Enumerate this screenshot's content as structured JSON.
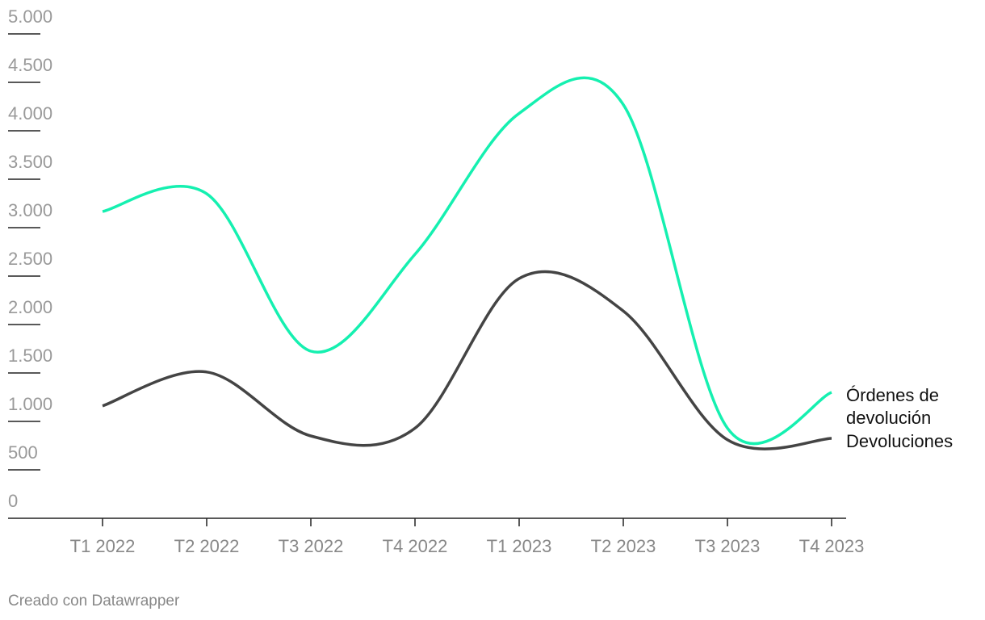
{
  "chart_data": {
    "type": "line",
    "categories": [
      "T1 2022",
      "T2 2022",
      "T3 2022",
      "T4 2022",
      "T1 2023",
      "T2 2023",
      "T3 2023",
      "T4 2023"
    ],
    "series": [
      {
        "name": "Órdenes de devolución",
        "color": "#15f0b0",
        "values": [
          3167,
          3350,
          1725,
          2725,
          4180,
          4270,
          930,
          1300
        ]
      },
      {
        "name": "Devoluciones",
        "color": "#444444",
        "values": [
          1160,
          1510,
          850,
          930,
          2475,
          2140,
          810,
          825
        ]
      }
    ],
    "ylim": [
      0,
      5000
    ],
    "yticks": [
      0,
      500,
      {
        "value": 1000,
        "label": "1.000"
      },
      {
        "value": 1500,
        "label": "1.500"
      },
      {
        "value": 2000,
        "label": "2.000"
      },
      {
        "value": 2500,
        "label": "2.500"
      },
      {
        "value": 3000,
        "label": "3.000"
      },
      {
        "value": 3500,
        "label": "3.500"
      },
      {
        "value": 4000,
        "label": "4.000"
      },
      {
        "value": 4500,
        "label": "4.500"
      },
      {
        "value": 5000,
        "label": "5.000"
      }
    ],
    "footer": "Creado con Datawrapper"
  }
}
